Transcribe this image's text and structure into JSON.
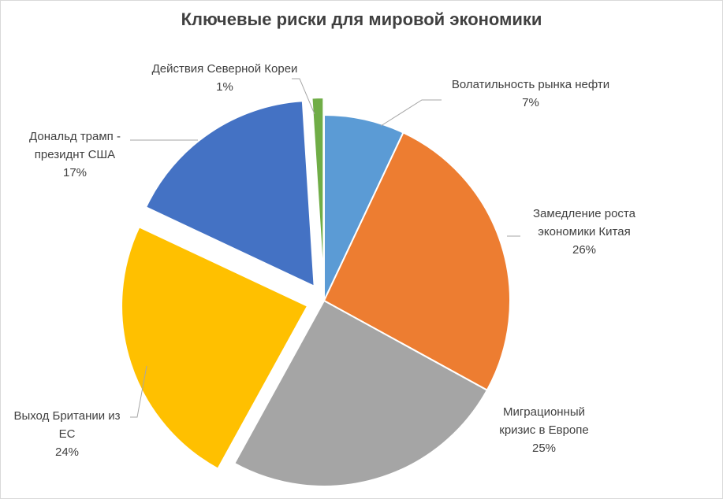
{
  "chart_data": {
    "type": "pie",
    "title": "Ключевые риски для мировой экономики",
    "slices": [
      {
        "label_lines": [
          "Волатильность рынка нефти"
        ],
        "percent_label": "7%",
        "value": 7,
        "color": "#5b9bd5",
        "exploded": false
      },
      {
        "label_lines": [
          "Замедление роста",
          "экономики Китая"
        ],
        "percent_label": "26%",
        "value": 26,
        "color": "#ed7d31",
        "exploded": false
      },
      {
        "label_lines": [
          "Миграционный",
          "кризис в Европе"
        ],
        "percent_label": "25%",
        "value": 25,
        "color": "#a5a5a5",
        "exploded": false
      },
      {
        "label_lines": [
          "Выход Британии из",
          "ЕС"
        ],
        "percent_label": "24%",
        "value": 24,
        "color": "#ffc000",
        "exploded": true
      },
      {
        "label_lines": [
          "Дональд трамп -",
          "президнт США"
        ],
        "percent_label": "17%",
        "value": 17,
        "color": "#4472c4",
        "exploded": true
      },
      {
        "label_lines": [
          "Действия Северной Кореи"
        ],
        "percent_label": "1%",
        "value": 1,
        "color": "#70ad47",
        "exploded": true
      }
    ]
  }
}
